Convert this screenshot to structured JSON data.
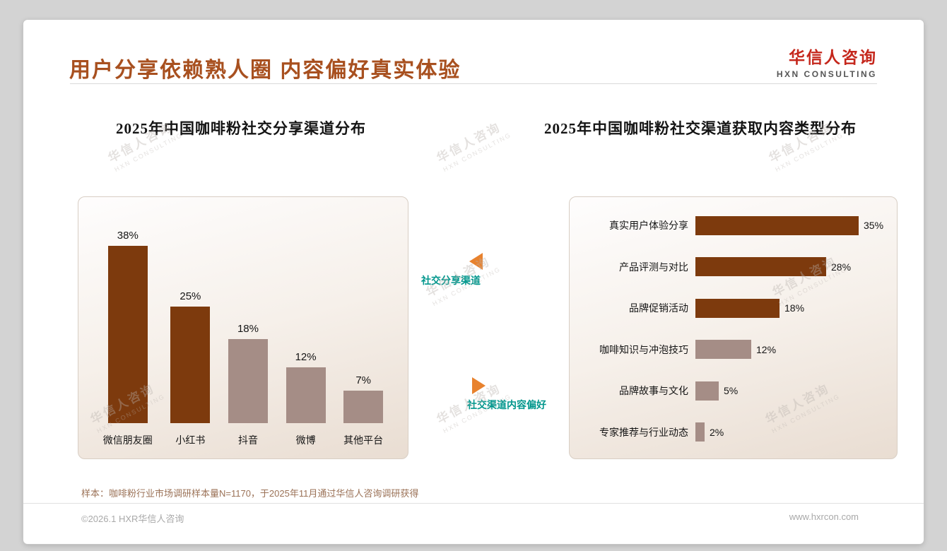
{
  "header": {
    "title": "用户分享依赖熟人圈 内容偏好真实体验",
    "logo_name": "华信人咨询",
    "logo_subtitle": "HXN CONSULTING"
  },
  "middle": {
    "top_label": "社交分享渠道",
    "bottom_label": "社交渠道内容偏好"
  },
  "chart_data": [
    {
      "type": "bar",
      "orientation": "vertical",
      "title": "2025年中国咖啡粉社交分享渠道分布",
      "categories": [
        "微信朋友圈",
        "小红书",
        "抖音",
        "微博",
        "其他平台"
      ],
      "values": [
        38,
        25,
        18,
        12,
        7
      ],
      "value_labels": [
        "38%",
        "25%",
        "18%",
        "12%",
        "7%"
      ],
      "ylim": [
        0,
        40
      ],
      "grid": false,
      "bar_colors": [
        "#7d3a0d",
        "#7d3a0d",
        "#a58d86",
        "#a58d86",
        "#a58d86"
      ]
    },
    {
      "type": "bar",
      "orientation": "horizontal",
      "title": "2025年中国咖啡粉社交渠道获取内容类型分布",
      "categories": [
        "真实用户体验分享",
        "产品评测与对比",
        "品牌促销活动",
        "咖啡知识与冲泡技巧",
        "品牌故事与文化",
        "专家推荐与行业动态"
      ],
      "values": [
        35,
        28,
        18,
        12,
        5,
        2
      ],
      "value_labels": [
        "35%",
        "28%",
        "18%",
        "12%",
        "5%",
        "2%"
      ],
      "xlim": [
        0,
        40
      ],
      "grid": false,
      "bar_colors": [
        "#7d3a0d",
        "#7d3a0d",
        "#7d3a0d",
        "#a58d86",
        "#a58d86",
        "#a58d86"
      ]
    }
  ],
  "footnote": "样本：咖啡粉行业市场调研样本量N=1170，于2025年11月通过华信人咨询调研获得",
  "footer": {
    "left": "©2026.1 HXR华信人咨询",
    "right": "www.hxrcon.com"
  },
  "watermark": {
    "line1": "华信人咨询",
    "line2": "HXN CONSULTING"
  },
  "colors": {
    "title_color": "#a8501f",
    "logo_red": "#c5271c",
    "bar_dark": "#7d3a0d",
    "bar_light": "#a58d86",
    "label_teal": "#00968c",
    "arrow_orange": "#e8822e"
  }
}
